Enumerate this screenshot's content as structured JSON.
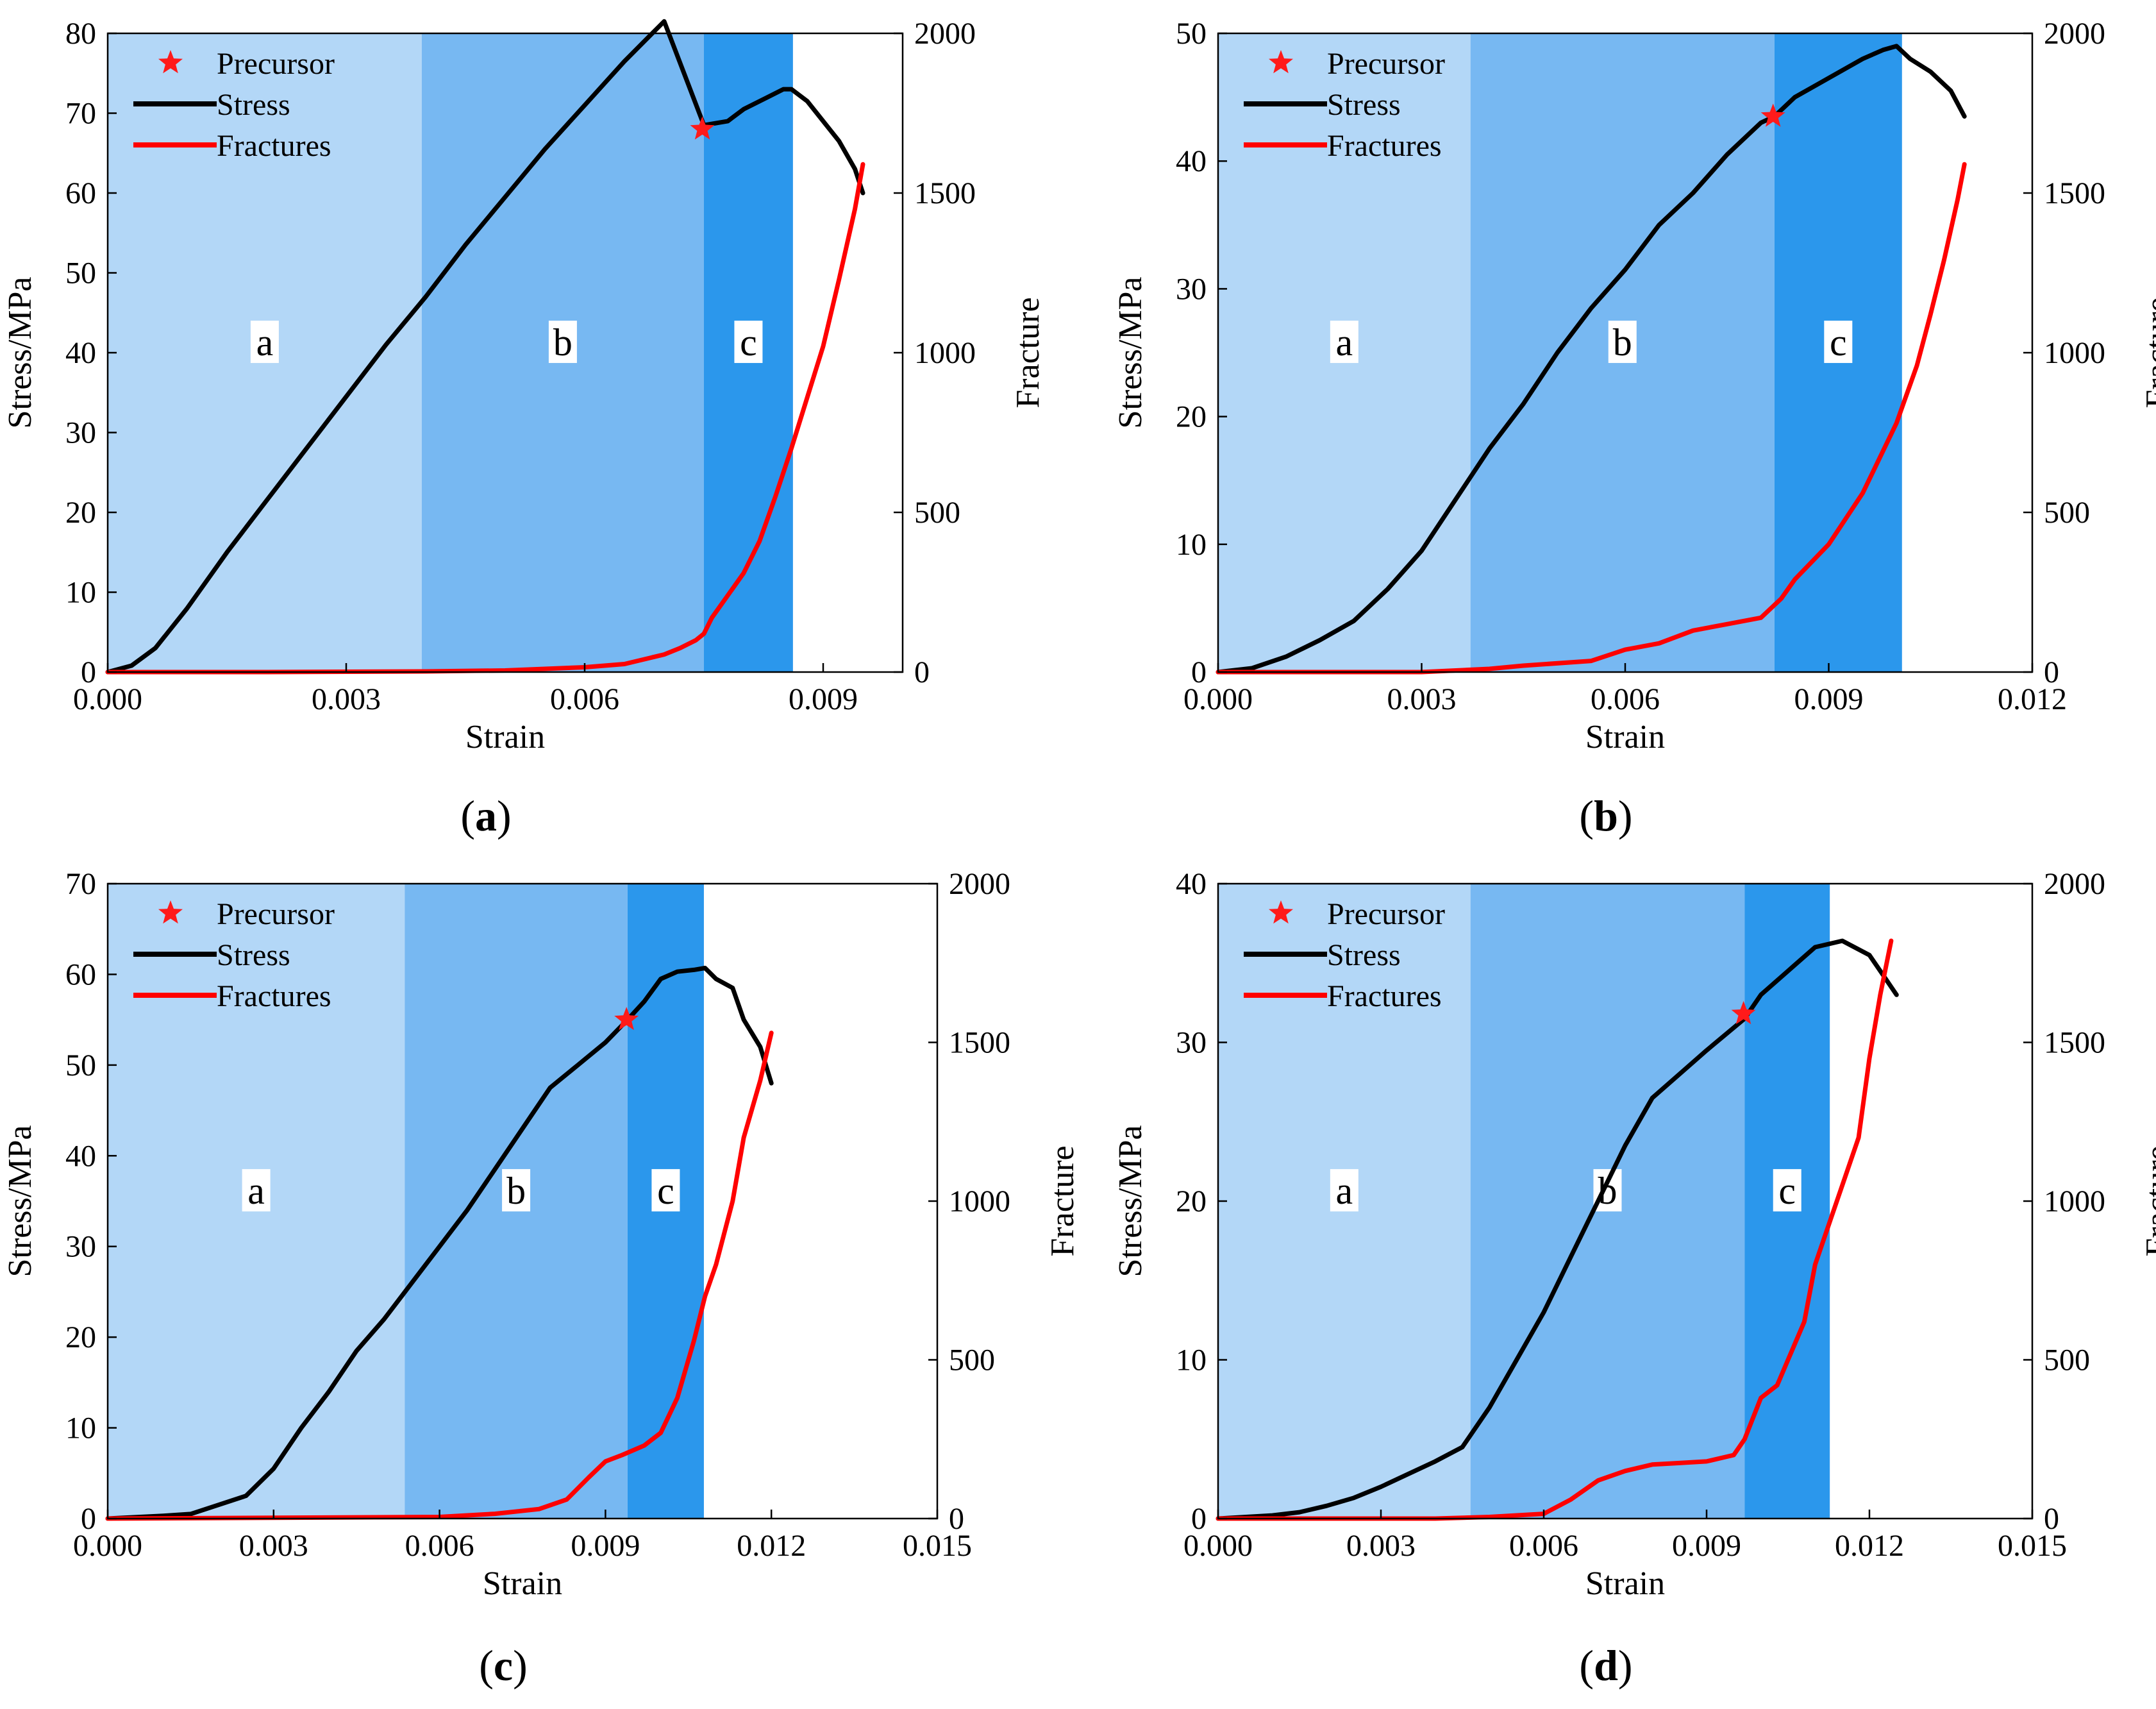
{
  "chart_data": [
    {
      "type": "line",
      "panel_label": "a",
      "xlabel": "Strain",
      "ylabel": "Stress/MPa",
      "y2label": "Fracture",
      "xlim": [
        0,
        0.01
      ],
      "ylim": [
        0,
        80
      ],
      "y2lim": [
        0,
        2000
      ],
      "xticks": [
        "0.000",
        "0.003",
        "0.006",
        "0.009"
      ],
      "yticks": [
        "0",
        "10",
        "20",
        "30",
        "40",
        "50",
        "60",
        "70",
        "80"
      ],
      "y2ticks": [
        "0",
        "500",
        "1000",
        "1500",
        "2000"
      ],
      "legend": {
        "precursor": "Precursor",
        "stress": "Stress",
        "fractures": "Fractures",
        "position": "top-left"
      },
      "regions": [
        {
          "label": "a",
          "from": 0.0,
          "to": 0.00395,
          "color": "#b3d7f7"
        },
        {
          "label": "b",
          "from": 0.00395,
          "to": 0.0075,
          "color": "#77b8f2"
        },
        {
          "label": "c",
          "from": 0.0075,
          "to": 0.00862,
          "color": "#2b97ec"
        }
      ],
      "precursor": {
        "x": 0.00748,
        "y": 68
      },
      "series": [
        {
          "name": "Stress",
          "axis": "left",
          "color": "#000000",
          "x": [
            0,
            0.0003,
            0.0006,
            0.001,
            0.0015,
            0.002,
            0.0025,
            0.003,
            0.0035,
            0.004,
            0.0045,
            0.005,
            0.0055,
            0.006,
            0.0065,
            0.007,
            0.0075,
            0.0078,
            0.008,
            0.0083,
            0.0085,
            0.0086,
            0.0088,
            0.009,
            0.0092,
            0.0094,
            0.0095
          ],
          "y": [
            0,
            0.8,
            3,
            8,
            15,
            21.5,
            28,
            34.5,
            41,
            47,
            53.5,
            59.5,
            65.5,
            71,
            76.5,
            81.5,
            68.5,
            69,
            70.5,
            72,
            73,
            73,
            71.5,
            69,
            66.5,
            63,
            60
          ]
        },
        {
          "name": "Fractures",
          "axis": "right",
          "color": "#ff0000",
          "x": [
            0,
            0.002,
            0.004,
            0.005,
            0.006,
            0.0065,
            0.007,
            0.0072,
            0.0074,
            0.0075,
            0.0076,
            0.0078,
            0.008,
            0.0082,
            0.0084,
            0.0086,
            0.0088,
            0.009,
            0.0092,
            0.0094,
            0.0095
          ],
          "y": [
            0,
            0,
            2,
            5,
            15,
            25,
            55,
            75,
            100,
            120,
            170,
            240,
            310,
            410,
            550,
            700,
            860,
            1020,
            1230,
            1450,
            1590
          ]
        }
      ]
    },
    {
      "type": "line",
      "panel_label": "b",
      "xlabel": "Strain",
      "ylabel": "Stress/MPa",
      "y2label": "Fracture",
      "xlim": [
        0,
        0.012
      ],
      "ylim": [
        0,
        50
      ],
      "y2lim": [
        0,
        2000
      ],
      "xticks": [
        "0.000",
        "0.003",
        "0.006",
        "0.009",
        "0.012"
      ],
      "yticks": [
        "0",
        "10",
        "20",
        "30",
        "40",
        "50"
      ],
      "y2ticks": [
        "0",
        "500",
        "1000",
        "1500",
        "2000"
      ],
      "legend": {
        "precursor": "Precursor",
        "stress": "Stress",
        "fractures": "Fractures",
        "position": "top-left"
      },
      "regions": [
        {
          "label": "a",
          "from": 0.0,
          "to": 0.00372,
          "color": "#b3d7f7"
        },
        {
          "label": "b",
          "from": 0.00372,
          "to": 0.0082,
          "color": "#77b8f2"
        },
        {
          "label": "c",
          "from": 0.0082,
          "to": 0.01008,
          "color": "#2b97ec"
        }
      ],
      "precursor": {
        "x": 0.00818,
        "y": 43.5
      },
      "series": [
        {
          "name": "Stress",
          "axis": "left",
          "color": "#000000",
          "x": [
            0,
            0.0005,
            0.001,
            0.0015,
            0.002,
            0.0025,
            0.003,
            0.0035,
            0.004,
            0.0045,
            0.005,
            0.0055,
            0.006,
            0.0065,
            0.007,
            0.0075,
            0.008,
            0.0082,
            0.0085,
            0.009,
            0.0095,
            0.0098,
            0.01,
            0.0102,
            0.0105,
            0.0108,
            0.011
          ],
          "y": [
            0,
            0.3,
            1.2,
            2.5,
            4,
            6.5,
            9.5,
            13.5,
            17.5,
            21,
            25,
            28.5,
            31.5,
            35,
            37.5,
            40.5,
            43,
            43.5,
            45,
            46.5,
            48,
            48.7,
            49,
            48,
            47,
            45.5,
            43.5
          ]
        },
        {
          "name": "Fractures",
          "axis": "right",
          "color": "#ff0000",
          "x": [
            0,
            0.003,
            0.004,
            0.0045,
            0.0055,
            0.006,
            0.0065,
            0.007,
            0.0075,
            0.008,
            0.0083,
            0.0085,
            0.009,
            0.0095,
            0.01,
            0.0103,
            0.0105,
            0.0107,
            0.0109,
            0.011
          ],
          "y": [
            0,
            0,
            10,
            20,
            35,
            70,
            90,
            130,
            150,
            170,
            230,
            290,
            400,
            560,
            780,
            960,
            1120,
            1290,
            1480,
            1590
          ]
        }
      ]
    },
    {
      "type": "line",
      "panel_label": "c",
      "xlabel": "Strain",
      "ylabel": "Stress/MPa",
      "y2label": "Fracture",
      "xlim": [
        0,
        0.015
      ],
      "ylim": [
        0,
        70
      ],
      "y2lim": [
        0,
        2000
      ],
      "xticks": [
        "0.000",
        "0.003",
        "0.006",
        "0.009",
        "0.012",
        "0.015"
      ],
      "yticks": [
        "0",
        "10",
        "20",
        "30",
        "40",
        "50",
        "60",
        "70"
      ],
      "y2ticks": [
        "0",
        "500",
        "1000",
        "1500",
        "2000"
      ],
      "legend": {
        "precursor": "Precursor",
        "stress": "Stress",
        "fractures": "Fractures",
        "position": "top-left"
      },
      "regions": [
        {
          "label": "a",
          "from": 0.0,
          "to": 0.00537,
          "color": "#b3d7f7"
        },
        {
          "label": "b",
          "from": 0.00537,
          "to": 0.0094,
          "color": "#77b8f2"
        },
        {
          "label": "c",
          "from": 0.0094,
          "to": 0.01078,
          "color": "#2b97ec"
        }
      ],
      "precursor": {
        "x": 0.00938,
        "y": 55
      },
      "series": [
        {
          "name": "Stress",
          "axis": "left",
          "color": "#000000",
          "x": [
            0,
            0.001,
            0.0015,
            0.002,
            0.0025,
            0.003,
            0.0035,
            0.004,
            0.0045,
            0.005,
            0.0055,
            0.006,
            0.0065,
            0.007,
            0.0075,
            0.008,
            0.0085,
            0.009,
            0.0094,
            0.0097,
            0.01,
            0.0103,
            0.0106,
            0.0108,
            0.011,
            0.0113,
            0.0115,
            0.0118,
            0.012
          ],
          "y": [
            0,
            0.3,
            0.5,
            1.5,
            2.5,
            5.5,
            10,
            14,
            18.5,
            22,
            26,
            30,
            34,
            38.5,
            43,
            47.5,
            50,
            52.5,
            55,
            57,
            59.5,
            60.3,
            60.5,
            60.7,
            59.5,
            58.5,
            55,
            52,
            48
          ]
        },
        {
          "name": "Fractures",
          "axis": "right",
          "color": "#ff0000",
          "x": [
            0,
            0.006,
            0.007,
            0.0078,
            0.0083,
            0.0087,
            0.009,
            0.0093,
            0.0097,
            0.01,
            0.0103,
            0.0106,
            0.0108,
            0.011,
            0.0113,
            0.0115,
            0.0118,
            0.012
          ],
          "y": [
            0,
            5,
            15,
            30,
            60,
            130,
            180,
            200,
            230,
            270,
            380,
            560,
            700,
            800,
            1000,
            1200,
            1380,
            1530
          ]
        }
      ]
    },
    {
      "type": "line",
      "panel_label": "d",
      "xlabel": "Strain",
      "ylabel": "Stress/MPa",
      "y2label": "Fracture",
      "xlim": [
        0,
        0.015
      ],
      "ylim": [
        0,
        40
      ],
      "y2lim": [
        0,
        2000
      ],
      "xticks": [
        "0.000",
        "0.003",
        "0.006",
        "0.009",
        "0.012",
        "0.015"
      ],
      "yticks": [
        "0",
        "10",
        "20",
        "30",
        "40"
      ],
      "y2ticks": [
        "0",
        "500",
        "1000",
        "1500",
        "2000"
      ],
      "legend": {
        "precursor": "Precursor",
        "stress": "Stress",
        "fractures": "Fractures",
        "position": "top-left"
      },
      "regions": [
        {
          "label": "a",
          "from": 0.0,
          "to": 0.00465,
          "color": "#b3d7f7"
        },
        {
          "label": "b",
          "from": 0.00465,
          "to": 0.0097,
          "color": "#77b8f2"
        },
        {
          "label": "c",
          "from": 0.0097,
          "to": 0.01127,
          "color": "#2b97ec"
        }
      ],
      "precursor": {
        "x": 0.00968,
        "y": 31.8
      },
      "series": [
        {
          "name": "Stress",
          "axis": "left",
          "color": "#000000",
          "x": [
            0,
            0.001,
            0.0015,
            0.002,
            0.0025,
            0.003,
            0.0035,
            0.004,
            0.0045,
            0.005,
            0.0055,
            0.006,
            0.0065,
            0.007,
            0.0075,
            0.008,
            0.0085,
            0.009,
            0.0097,
            0.01,
            0.0105,
            0.011,
            0.0115,
            0.012,
            0.0123,
            0.0125
          ],
          "y": [
            0,
            0.2,
            0.4,
            0.8,
            1.3,
            2,
            2.8,
            3.6,
            4.5,
            7,
            10,
            13,
            16.5,
            20,
            23.5,
            26.5,
            28,
            29.5,
            31.5,
            33,
            34.5,
            36,
            36.4,
            35.5,
            34,
            33
          ]
        },
        {
          "name": "Fractures",
          "axis": "right",
          "color": "#ff0000",
          "x": [
            0,
            0.004,
            0.005,
            0.006,
            0.0065,
            0.007,
            0.0075,
            0.008,
            0.0085,
            0.009,
            0.0095,
            0.0097,
            0.01,
            0.0103,
            0.0105,
            0.0108,
            0.011,
            0.0113,
            0.0115,
            0.0118,
            0.012,
            0.0122,
            0.0124
          ],
          "y": [
            0,
            0,
            5,
            15,
            60,
            120,
            150,
            170,
            175,
            180,
            200,
            250,
            380,
            420,
            500,
            620,
            800,
            950,
            1050,
            1200,
            1450,
            1650,
            1820
          ]
        }
      ]
    }
  ]
}
